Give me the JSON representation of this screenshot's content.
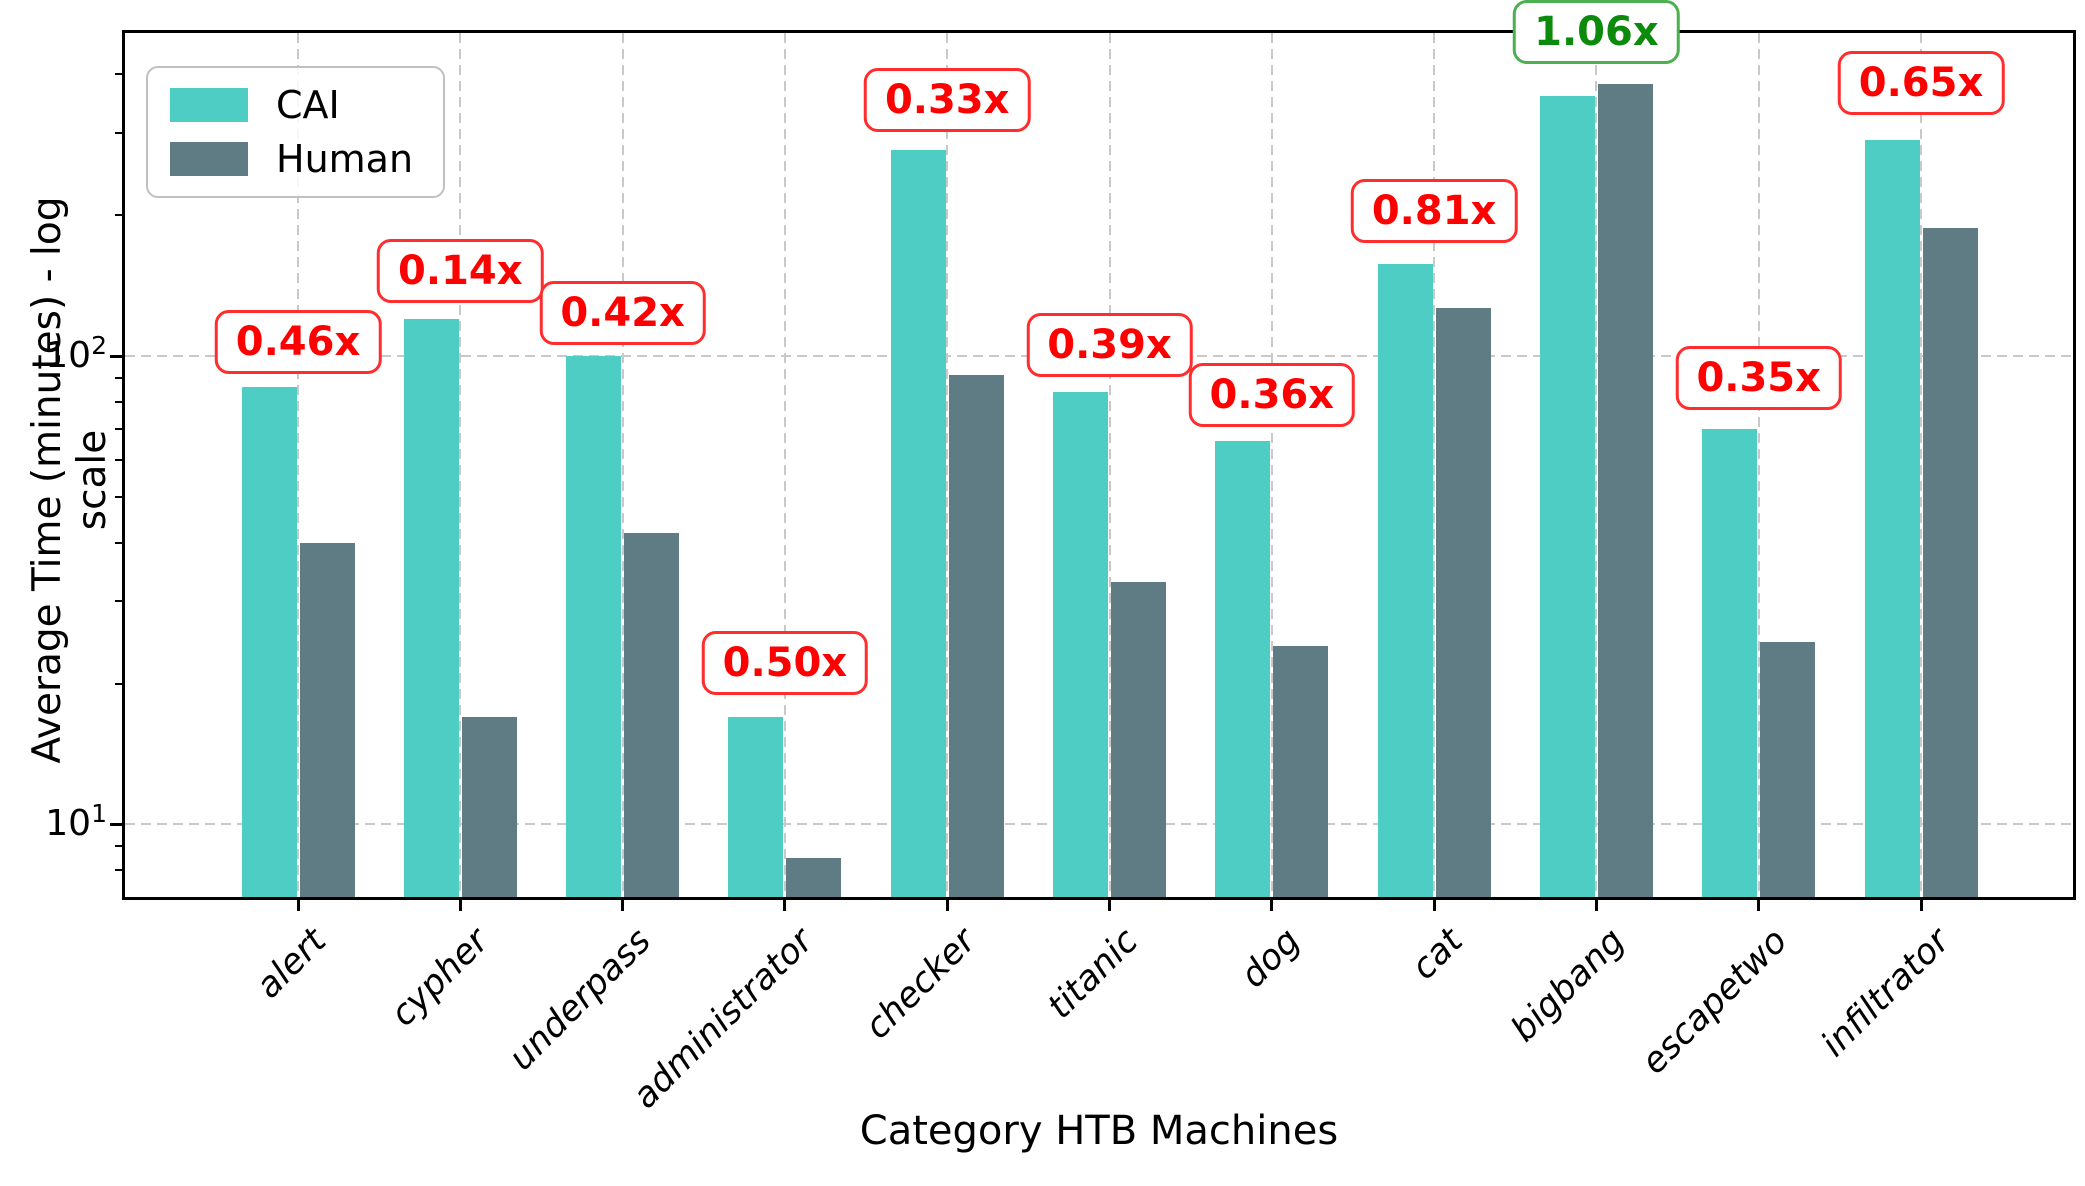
{
  "chart_data": {
    "type": "bar",
    "title": "",
    "xlabel": "Category HTB Machines",
    "ylabel": "Average Time (minutes) - log scale",
    "yscale": "log",
    "ylim": [
      7,
      490
    ],
    "yticks_major": [
      {
        "base": 10,
        "exp": 1
      },
      {
        "base": 10,
        "exp": 2
      }
    ],
    "yticks_minor": [
      8,
      9,
      20,
      30,
      40,
      50,
      60,
      70,
      80,
      90,
      200,
      300,
      400
    ],
    "grid": true,
    "categories": [
      "alert",
      "cypher",
      "underpass",
      "administrator",
      "checker",
      "titanic",
      "dog",
      "cat",
      "bigbang",
      "escapetwo",
      "infiltrator"
    ],
    "series": [
      {
        "name": "CAI",
        "color": "#4ECDC4",
        "values": [
          86,
          120,
          100,
          17,
          275,
          84,
          66,
          157,
          360,
          70,
          290
        ]
      },
      {
        "name": "Human",
        "color": "#5F7C85",
        "values": [
          40,
          17,
          42,
          8.5,
          91,
          33,
          24,
          127,
          382,
          24.5,
          188
        ]
      }
    ],
    "ratio_annotations": [
      {
        "category": "alert",
        "text": "0.46x",
        "highlight": false
      },
      {
        "category": "cypher",
        "text": "0.14x",
        "highlight": false
      },
      {
        "category": "underpass",
        "text": "0.42x",
        "highlight": false
      },
      {
        "category": "administrator",
        "text": "0.50x",
        "highlight": false
      },
      {
        "category": "checker",
        "text": "0.33x",
        "highlight": false
      },
      {
        "category": "titanic",
        "text": "0.39x",
        "highlight": false
      },
      {
        "category": "dog",
        "text": "0.36x",
        "highlight": false
      },
      {
        "category": "cat",
        "text": "0.81x",
        "highlight": false
      },
      {
        "category": "bigbang",
        "text": "1.06x",
        "highlight": true
      },
      {
        "category": "escapetwo",
        "text": "0.35x",
        "highlight": false
      },
      {
        "category": "infiltrator",
        "text": "0.65x",
        "highlight": false
      }
    ],
    "annotation_colors": {
      "normal_text": "#FF0000",
      "normal_border": "#FF2D2D",
      "highlight_text": "#0B8A0B",
      "highlight_border": "#4CAF50"
    },
    "legend": {
      "position": "upper left",
      "entries": [
        "CAI",
        "Human"
      ]
    }
  }
}
